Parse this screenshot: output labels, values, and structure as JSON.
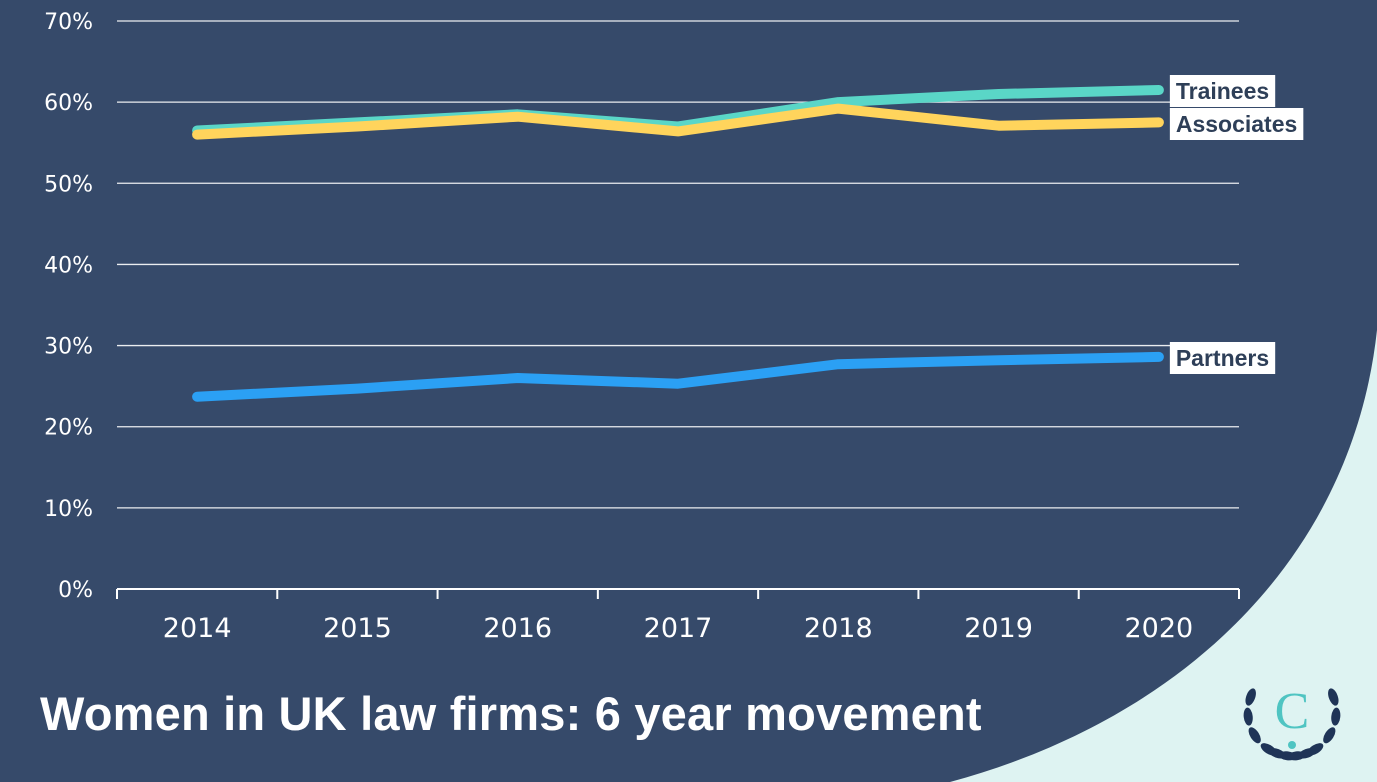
{
  "title": "Women in UK law firms: 6 year movement",
  "colors": {
    "background": "#364a6a",
    "corner": "#def3f2",
    "Trainees": "#5ad6c7",
    "Associates": "#ffd45c",
    "Partners": "#2ba0f4"
  },
  "chart_data": {
    "type": "line",
    "title": "Women in UK law firms: 6 year movement",
    "x": [
      "2014",
      "2015",
      "2016",
      "2017",
      "2018",
      "2019",
      "2020"
    ],
    "ylim": [
      0,
      70
    ],
    "yticks": [
      "0%",
      "10%",
      "20%",
      "30%",
      "40%",
      "50%",
      "60%",
      "70%"
    ],
    "grid": true,
    "legend": "inline labels at line ends",
    "series": [
      {
        "name": "Trainees",
        "values": [
          56.5,
          57.5,
          58.5,
          57.0,
          60.0,
          61.0,
          61.5
        ]
      },
      {
        "name": "Associates",
        "values": [
          56.0,
          57.0,
          58.2,
          56.4,
          59.2,
          57.1,
          57.5
        ]
      },
      {
        "name": "Partners",
        "values": [
          23.7,
          24.7,
          26.0,
          25.3,
          27.7,
          28.2,
          28.6
        ]
      }
    ]
  },
  "logo": {
    "letter": "C",
    "icon": "laurel-wreath-icon"
  }
}
